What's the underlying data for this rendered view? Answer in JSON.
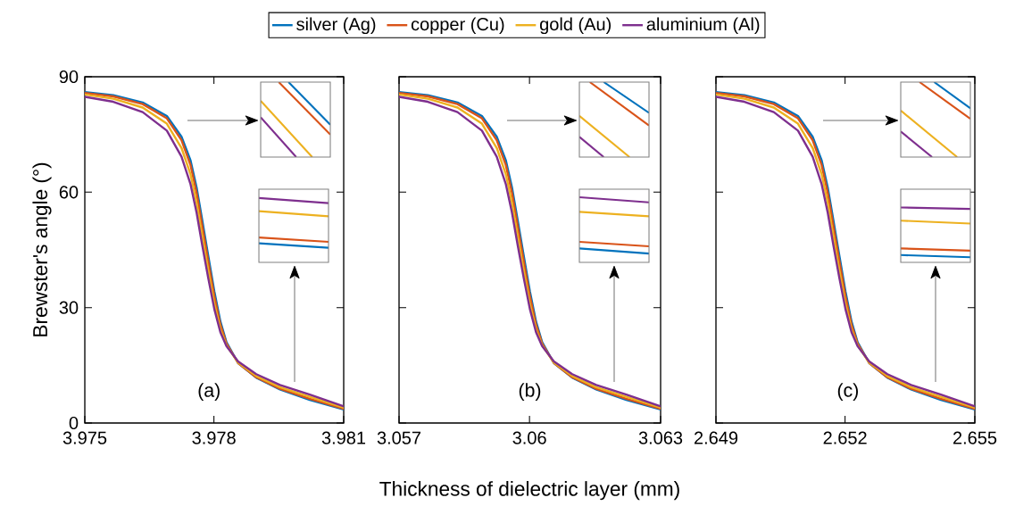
{
  "chart_data": [
    {
      "type": "line",
      "ylabel": "Brewster's angle (°)",
      "xlim": [
        3.975,
        3.981
      ],
      "xticks": [
        3.975,
        3.978,
        3.981
      ],
      "ylim": [
        0,
        90
      ],
      "yticks": [
        0,
        30,
        60,
        90
      ],
      "legend": "top",
      "annotations": [
        "(a)"
      ],
      "x": [
        3.975,
        3.97566,
        3.97634,
        3.9769,
        3.97724,
        3.97745,
        3.97759,
        3.97772,
        3.97786,
        3.978,
        3.97814,
        3.97828,
        3.97855,
        3.97897,
        3.97952,
        3.98021,
        3.981
      ],
      "series": [
        {
          "name": "silver (Ag)",
          "color": "#0072bd",
          "values": [
            86.0,
            85.2,
            83.3,
            79.8,
            74.4,
            68.2,
            61.2,
            52.7,
            43.4,
            34.2,
            26.4,
            21.0,
            15.6,
            11.8,
            8.7,
            6.0,
            3.5
          ]
        },
        {
          "name": "copper (Cu)",
          "color": "#d95319",
          "values": [
            85.8,
            84.9,
            82.9,
            79.2,
            73.5,
            67.0,
            59.8,
            51.2,
            42.0,
            33.0,
            25.6,
            20.7,
            15.6,
            11.9,
            8.9,
            6.3,
            3.7
          ]
        },
        {
          "name": "gold (Au)",
          "color": "#edb120",
          "values": [
            85.4,
            84.3,
            82.0,
            77.8,
            71.5,
            64.6,
            57.2,
            48.6,
            39.6,
            31.0,
            24.4,
            20.2,
            15.7,
            12.2,
            9.3,
            6.8,
            4.0
          ]
        },
        {
          "name": "aluminium (Al)",
          "color": "#7e2f8e",
          "values": [
            84.8,
            83.5,
            80.8,
            76.0,
            69.2,
            62.0,
            54.6,
            46.2,
            37.6,
            29.6,
            23.6,
            20.0,
            16.0,
            12.7,
            9.9,
            7.4,
            4.3
          ]
        }
      ]
    },
    {
      "type": "line",
      "xlabel": "Thickness of dielectric layer (mm)",
      "xlim": [
        3.057,
        3.063
      ],
      "xticks": [
        3.057,
        3.06,
        3.063
      ],
      "ylim": [
        0,
        90
      ],
      "yticks": [
        0,
        30,
        60,
        90
      ],
      "tick_labels": "x",
      "annotations": [
        "(b)"
      ],
      "x": [
        3.057,
        3.05766,
        3.05834,
        3.0589,
        3.05924,
        3.05945,
        3.05959,
        3.05972,
        3.05986,
        3.06,
        3.06014,
        3.06028,
        3.06055,
        3.06097,
        3.06152,
        3.06221,
        3.063
      ],
      "series": [
        {
          "color": "#0072bd",
          "values": [
            86.0,
            85.2,
            83.3,
            79.8,
            74.4,
            68.2,
            61.2,
            52.7,
            43.4,
            34.2,
            26.4,
            21.0,
            15.6,
            11.8,
            8.7,
            6.0,
            3.5
          ]
        },
        {
          "color": "#d95319",
          "values": [
            85.8,
            84.9,
            82.9,
            79.2,
            73.5,
            67.0,
            59.8,
            51.2,
            42.0,
            33.0,
            25.6,
            20.7,
            15.6,
            11.9,
            8.9,
            6.3,
            3.7
          ]
        },
        {
          "color": "#edb120",
          "values": [
            85.4,
            84.3,
            82.0,
            77.8,
            71.5,
            64.6,
            57.2,
            48.6,
            39.6,
            31.0,
            24.4,
            20.2,
            15.7,
            12.2,
            9.3,
            6.8,
            4.0
          ]
        },
        {
          "color": "#7e2f8e",
          "values": [
            84.8,
            83.5,
            80.8,
            76.0,
            69.2,
            62.0,
            54.6,
            46.2,
            37.6,
            29.6,
            23.6,
            20.0,
            16.0,
            12.7,
            9.9,
            7.4,
            4.3
          ]
        }
      ]
    },
    {
      "type": "line",
      "xlim": [
        2.649,
        2.655
      ],
      "xticks": [
        2.649,
        2.652,
        2.655
      ],
      "ylim": [
        0,
        90
      ],
      "yticks": [
        0,
        30,
        60,
        90
      ],
      "tick_labels": "x",
      "annotations": [
        "(c)"
      ],
      "x": [
        2.649,
        2.64966,
        2.65034,
        2.6509,
        2.65124,
        2.65145,
        2.65159,
        2.65172,
        2.65186,
        2.652,
        2.65214,
        2.65228,
        2.65255,
        2.65297,
        2.65352,
        2.65421,
        2.655
      ],
      "series": [
        {
          "color": "#0072bd",
          "values": [
            86.0,
            85.2,
            83.3,
            79.8,
            74.4,
            68.2,
            61.2,
            52.7,
            43.4,
            34.2,
            26.4,
            21.0,
            15.6,
            11.8,
            8.7,
            6.0,
            3.5
          ]
        },
        {
          "color": "#d95319",
          "values": [
            85.8,
            84.9,
            82.9,
            79.2,
            73.5,
            67.0,
            59.8,
            51.2,
            42.0,
            33.0,
            25.6,
            20.7,
            15.6,
            11.9,
            8.9,
            6.3,
            3.7
          ]
        },
        {
          "color": "#edb120",
          "values": [
            85.4,
            84.3,
            82.0,
            77.8,
            71.5,
            64.6,
            57.2,
            48.6,
            39.6,
            31.0,
            24.4,
            20.2,
            15.7,
            12.2,
            9.3,
            6.8,
            4.0
          ]
        },
        {
          "color": "#7e2f8e",
          "values": [
            84.8,
            83.5,
            80.8,
            76.0,
            69.2,
            62.0,
            54.6,
            46.2,
            37.6,
            29.6,
            23.6,
            20.0,
            16.0,
            12.7,
            9.9,
            7.4,
            4.3
          ]
        }
      ]
    }
  ]
}
